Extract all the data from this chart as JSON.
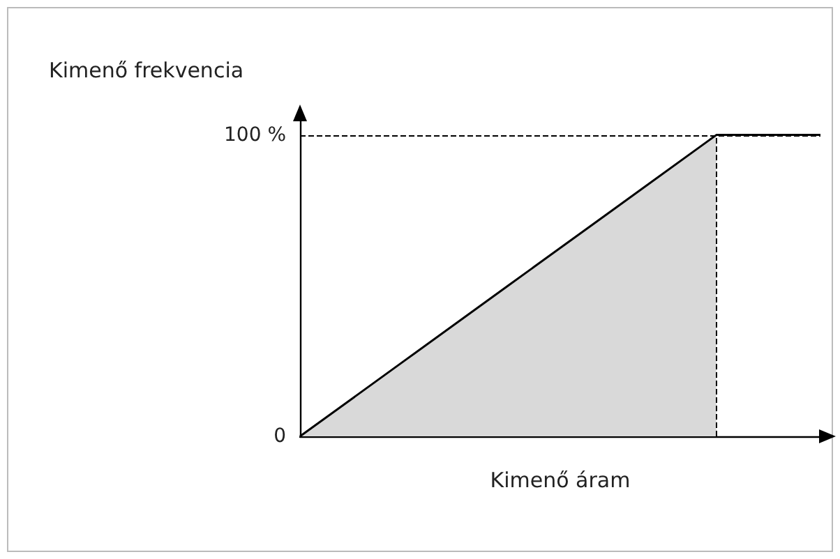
{
  "chart_data": {
    "type": "line",
    "ylabel": "Kimenő frekvencia",
    "xlabel": "Kimenő áram",
    "categories": [
      null,
      null,
      null,
      null,
      null,
      null
    ],
    "series": [
      {
        "type": "area",
        "color": "#d9d9d9",
        "values": [
          0,
          25,
          50,
          75,
          100,
          null
        ]
      },
      {
        "type": "line",
        "color": "#000000",
        "values": [
          0,
          25,
          50,
          75,
          100,
          100
        ]
      }
    ],
    "ylim": [
      0,
      105
    ],
    "yticks": [
      0,
      {
        "value": 100,
        "label": "100 %"
      }
    ],
    "ref_lines": [
      {
        "axis": "y",
        "value": 100,
        "line_style": "dashed",
        "color": "#000000"
      }
    ],
    "grid": false,
    "marker": "none"
  }
}
